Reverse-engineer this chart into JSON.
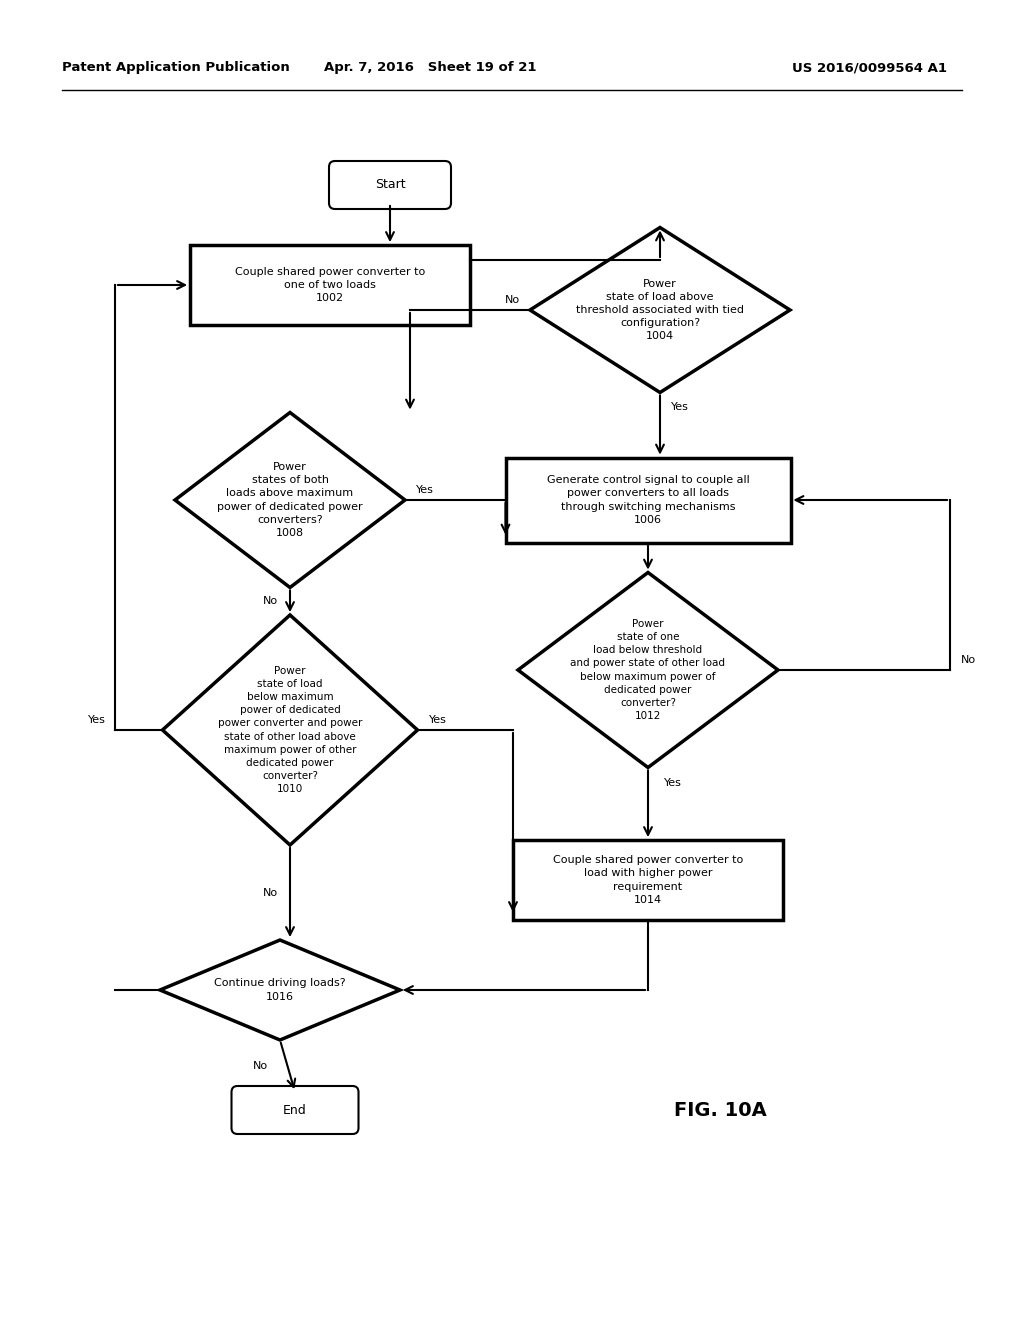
{
  "header_left": "Patent Application Publication",
  "header_mid": "Apr. 7, 2016   Sheet 19 of 21",
  "header_right": "US 2016/0099564 A1",
  "fig_label": "FIG. 10A",
  "bg_color": "#ffffff",
  "line_color": "#000000",
  "text_color": "#000000",
  "font_size": 8.0,
  "header_font_size": 9.5,
  "fig_label_size": 14
}
